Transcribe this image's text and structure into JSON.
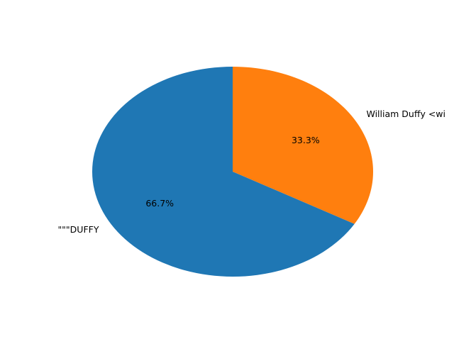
{
  "chart_data": {
    "type": "pie",
    "title": "",
    "slices": [
      {
        "label": "William Duffy <wi",
        "value": 33.3,
        "pct_label": "33.3%",
        "color": "#ff7f0e"
      },
      {
        "label": "\"\"\"DUFFY",
        "value": 66.7,
        "pct_label": "66.7%",
        "color": "#1f77b4"
      }
    ],
    "start_angle_deg": 90,
    "direction": "clockwise"
  }
}
